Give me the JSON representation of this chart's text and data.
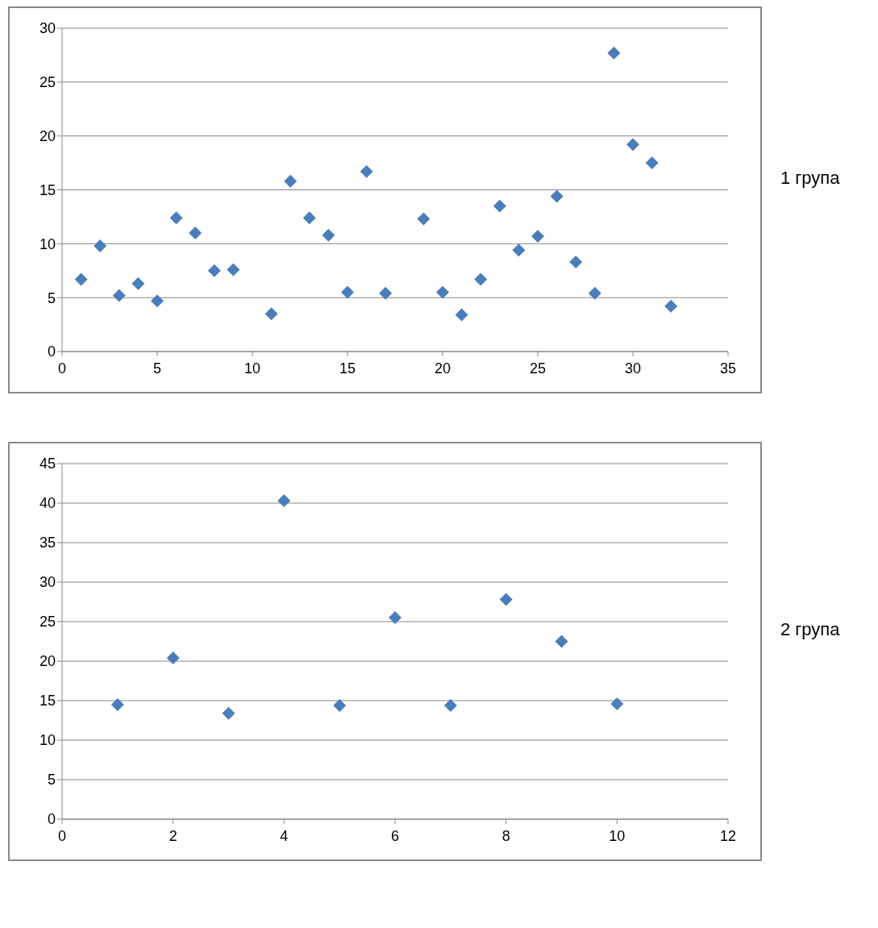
{
  "chart_data": [
    {
      "type": "scatter",
      "x": [
        1,
        2,
        3,
        4,
        5,
        6,
        7,
        8,
        9,
        11,
        12,
        13,
        14,
        15,
        16,
        17,
        19,
        20,
        21,
        22,
        23,
        24,
        25,
        26,
        27,
        28,
        29,
        30,
        31,
        32
      ],
      "values": [
        6.7,
        9.8,
        5.2,
        6.3,
        4.7,
        12.4,
        11.0,
        7.5,
        7.6,
        3.5,
        15.8,
        12.4,
        10.8,
        5.5,
        16.7,
        5.4,
        12.3,
        5.5,
        3.4,
        6.7,
        13.5,
        9.4,
        10.7,
        14.4,
        8.3,
        5.4,
        27.7,
        19.2,
        17.5,
        4.2
      ],
      "color": "#4a7ebb",
      "marker": "diamond",
      "xlim": [
        0,
        35
      ],
      "xticks": [
        0,
        5,
        10,
        15,
        20,
        25,
        30,
        35
      ],
      "ylim": [
        0,
        30
      ],
      "yticks": [
        0,
        5,
        10,
        15,
        20,
        25,
        30
      ],
      "grid": "y",
      "legend": false,
      "annotations": [
        "1 група"
      ]
    },
    {
      "type": "scatter",
      "x": [
        1,
        2,
        3,
        4,
        5,
        6,
        7,
        8,
        9,
        10
      ],
      "values": [
        14.5,
        20.4,
        13.4,
        40.3,
        14.4,
        25.5,
        14.4,
        27.8,
        22.5,
        14.6
      ],
      "color": "#4a7ebb",
      "marker": "diamond",
      "xlim": [
        0,
        12
      ],
      "xticks": [
        0,
        2,
        4,
        6,
        8,
        10,
        12
      ],
      "ylim": [
        0,
        45
      ],
      "yticks": [
        0,
        5,
        10,
        15,
        20,
        25,
        30,
        35,
        40,
        45
      ],
      "grid": "y",
      "legend": false,
      "annotations": [
        "2 група"
      ]
    }
  ]
}
